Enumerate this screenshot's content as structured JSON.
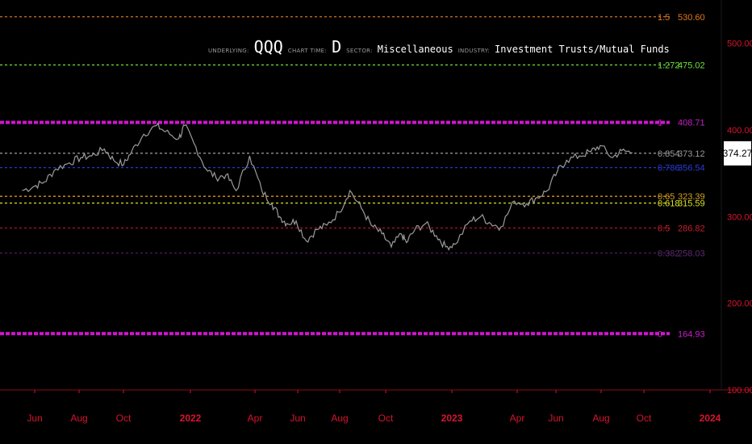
{
  "header": {
    "underlying_label": "UNDERLYING:",
    "underlying_value": "QQQ",
    "chart_time_label": "CHART TIME:",
    "chart_time_value": "D",
    "sector_label": "SECTOR:",
    "sector_value": "Miscellaneous",
    "industry_label": "INDUSTRY:",
    "industry_value": "Investment Trusts/Mutual Funds"
  },
  "last_price": "374.27",
  "colors": {
    "axis": "#d8142e",
    "price_line": "#9b9b9b",
    "background": "#000000"
  },
  "chart_data": {
    "type": "line",
    "title": "",
    "series": [
      {
        "x": [
          "2021-05-15",
          "2021-06-01",
          "2021-06-15",
          "2021-07-01",
          "2021-07-20",
          "2021-08-05",
          "2021-08-20",
          "2021-09-07",
          "2021-09-20",
          "2021-10-04",
          "2021-10-15",
          "2021-11-01",
          "2021-11-19",
          "2021-12-01",
          "2021-12-20",
          "2021-12-28",
          "2022-01-10",
          "2022-01-27",
          "2022-02-10",
          "2022-02-24",
          "2022-03-10",
          "2022-03-29",
          "2022-04-15",
          "2022-04-29",
          "2022-05-10",
          "2022-05-20",
          "2022-06-02",
          "2022-06-16",
          "2022-07-01",
          "2022-07-15",
          "2022-08-01",
          "2022-08-16",
          "2022-09-01",
          "2022-09-15",
          "2022-09-30",
          "2022-10-13",
          "2022-10-27",
          "2022-11-03",
          "2022-11-15",
          "2022-11-30",
          "2022-12-15",
          "2022-12-28",
          "2023-01-10",
          "2023-01-31",
          "2023-02-15",
          "2023-03-01",
          "2023-03-15",
          "2023-04-03",
          "2023-04-20",
          "2023-05-05",
          "2023-05-19",
          "2023-06-02",
          "2023-06-15",
          "2023-07-03",
          "2023-07-19",
          "2023-08-01",
          "2023-08-18",
          "2023-08-31",
          "2023-09-15"
        ],
        "values": [
          330,
          335,
          340,
          355,
          362,
          368,
          370,
          378,
          365,
          360,
          375,
          395,
          405,
          398,
          390,
          405,
          385,
          355,
          345,
          348,
          330,
          370,
          330,
          315,
          300,
          292,
          295,
          272,
          285,
          290,
          305,
          330,
          310,
          290,
          280,
          265,
          280,
          270,
          285,
          292,
          278,
          265,
          268,
          295,
          300,
          292,
          288,
          318,
          315,
          322,
          330,
          352,
          365,
          370,
          375,
          382,
          368,
          376,
          374
        ]
      }
    ],
    "y_ticks": [
      "100.00",
      "200.00",
      "300.00",
      "400.00",
      "500.00"
    ],
    "x_ticks": [
      "Jun",
      "Aug",
      "Oct",
      "2022",
      "Apr",
      "Jun",
      "Aug",
      "Oct",
      "2023",
      "Apr",
      "Jun",
      "Aug",
      "Oct",
      "2024"
    ],
    "ylim": [
      100,
      560
    ],
    "fib_levels": [
      {
        "ratio": "1.5",
        "price": "530.60",
        "value": 530.6,
        "color": "#e0781e",
        "style": "dashed",
        "ratio_color": "#e0781e",
        "price_color": "#e0781e"
      },
      {
        "ratio": "1.272",
        "price": "475.02",
        "value": 475.02,
        "color": "#6ee03a",
        "style": "dashed",
        "ratio_color": "#6ee03a",
        "price_color": "#6ee03a"
      },
      {
        "ratio": "1",
        "price": "408.71",
        "value": 408.71,
        "color": "#d015d0",
        "style": "thick",
        "ratio_color": "#c81fc8",
        "price_color": "#c81fc8"
      },
      {
        "ratio": "0.854",
        "price": "373.12",
        "value": 373.12,
        "color": "#9a9a9a",
        "style": "dashed",
        "ratio_color": "#9a9a9a",
        "price_color": "#9a9a9a"
      },
      {
        "ratio": "0.786",
        "price": "356.54",
        "value": 356.54,
        "color": "#2a3bd8",
        "style": "dashed",
        "ratio_color": "#2a3bd8",
        "price_color": "#2a3bd8"
      },
      {
        "ratio": "0.65",
        "price": "323.39",
        "value": 323.39,
        "color": "#e0a020",
        "style": "dashed",
        "ratio_color": "#d4a020",
        "price_color": "#d4a020"
      },
      {
        "ratio": "0.618",
        "price": "315.59",
        "value": 315.59,
        "color": "#d8e020",
        "style": "dashed",
        "ratio_color": "#d8e020",
        "price_color": "#d8e020"
      },
      {
        "ratio": "0.5",
        "price": "286.82",
        "value": 286.82,
        "color": "#b01424",
        "style": "dashed",
        "ratio_color": "#c81e2e",
        "price_color": "#c81e2e"
      },
      {
        "ratio": "0.382",
        "price": "258.03",
        "value": 258.03,
        "color": "#5a1a6a",
        "style": "dashed",
        "ratio_color": "#5a2a70",
        "price_color": "#5a2a70"
      },
      {
        "ratio": "0",
        "price": "164.93",
        "value": 164.93,
        "color": "#d015d0",
        "style": "thick",
        "ratio_color": "#c81fc8",
        "price_color": "#c81fc8"
      }
    ]
  }
}
